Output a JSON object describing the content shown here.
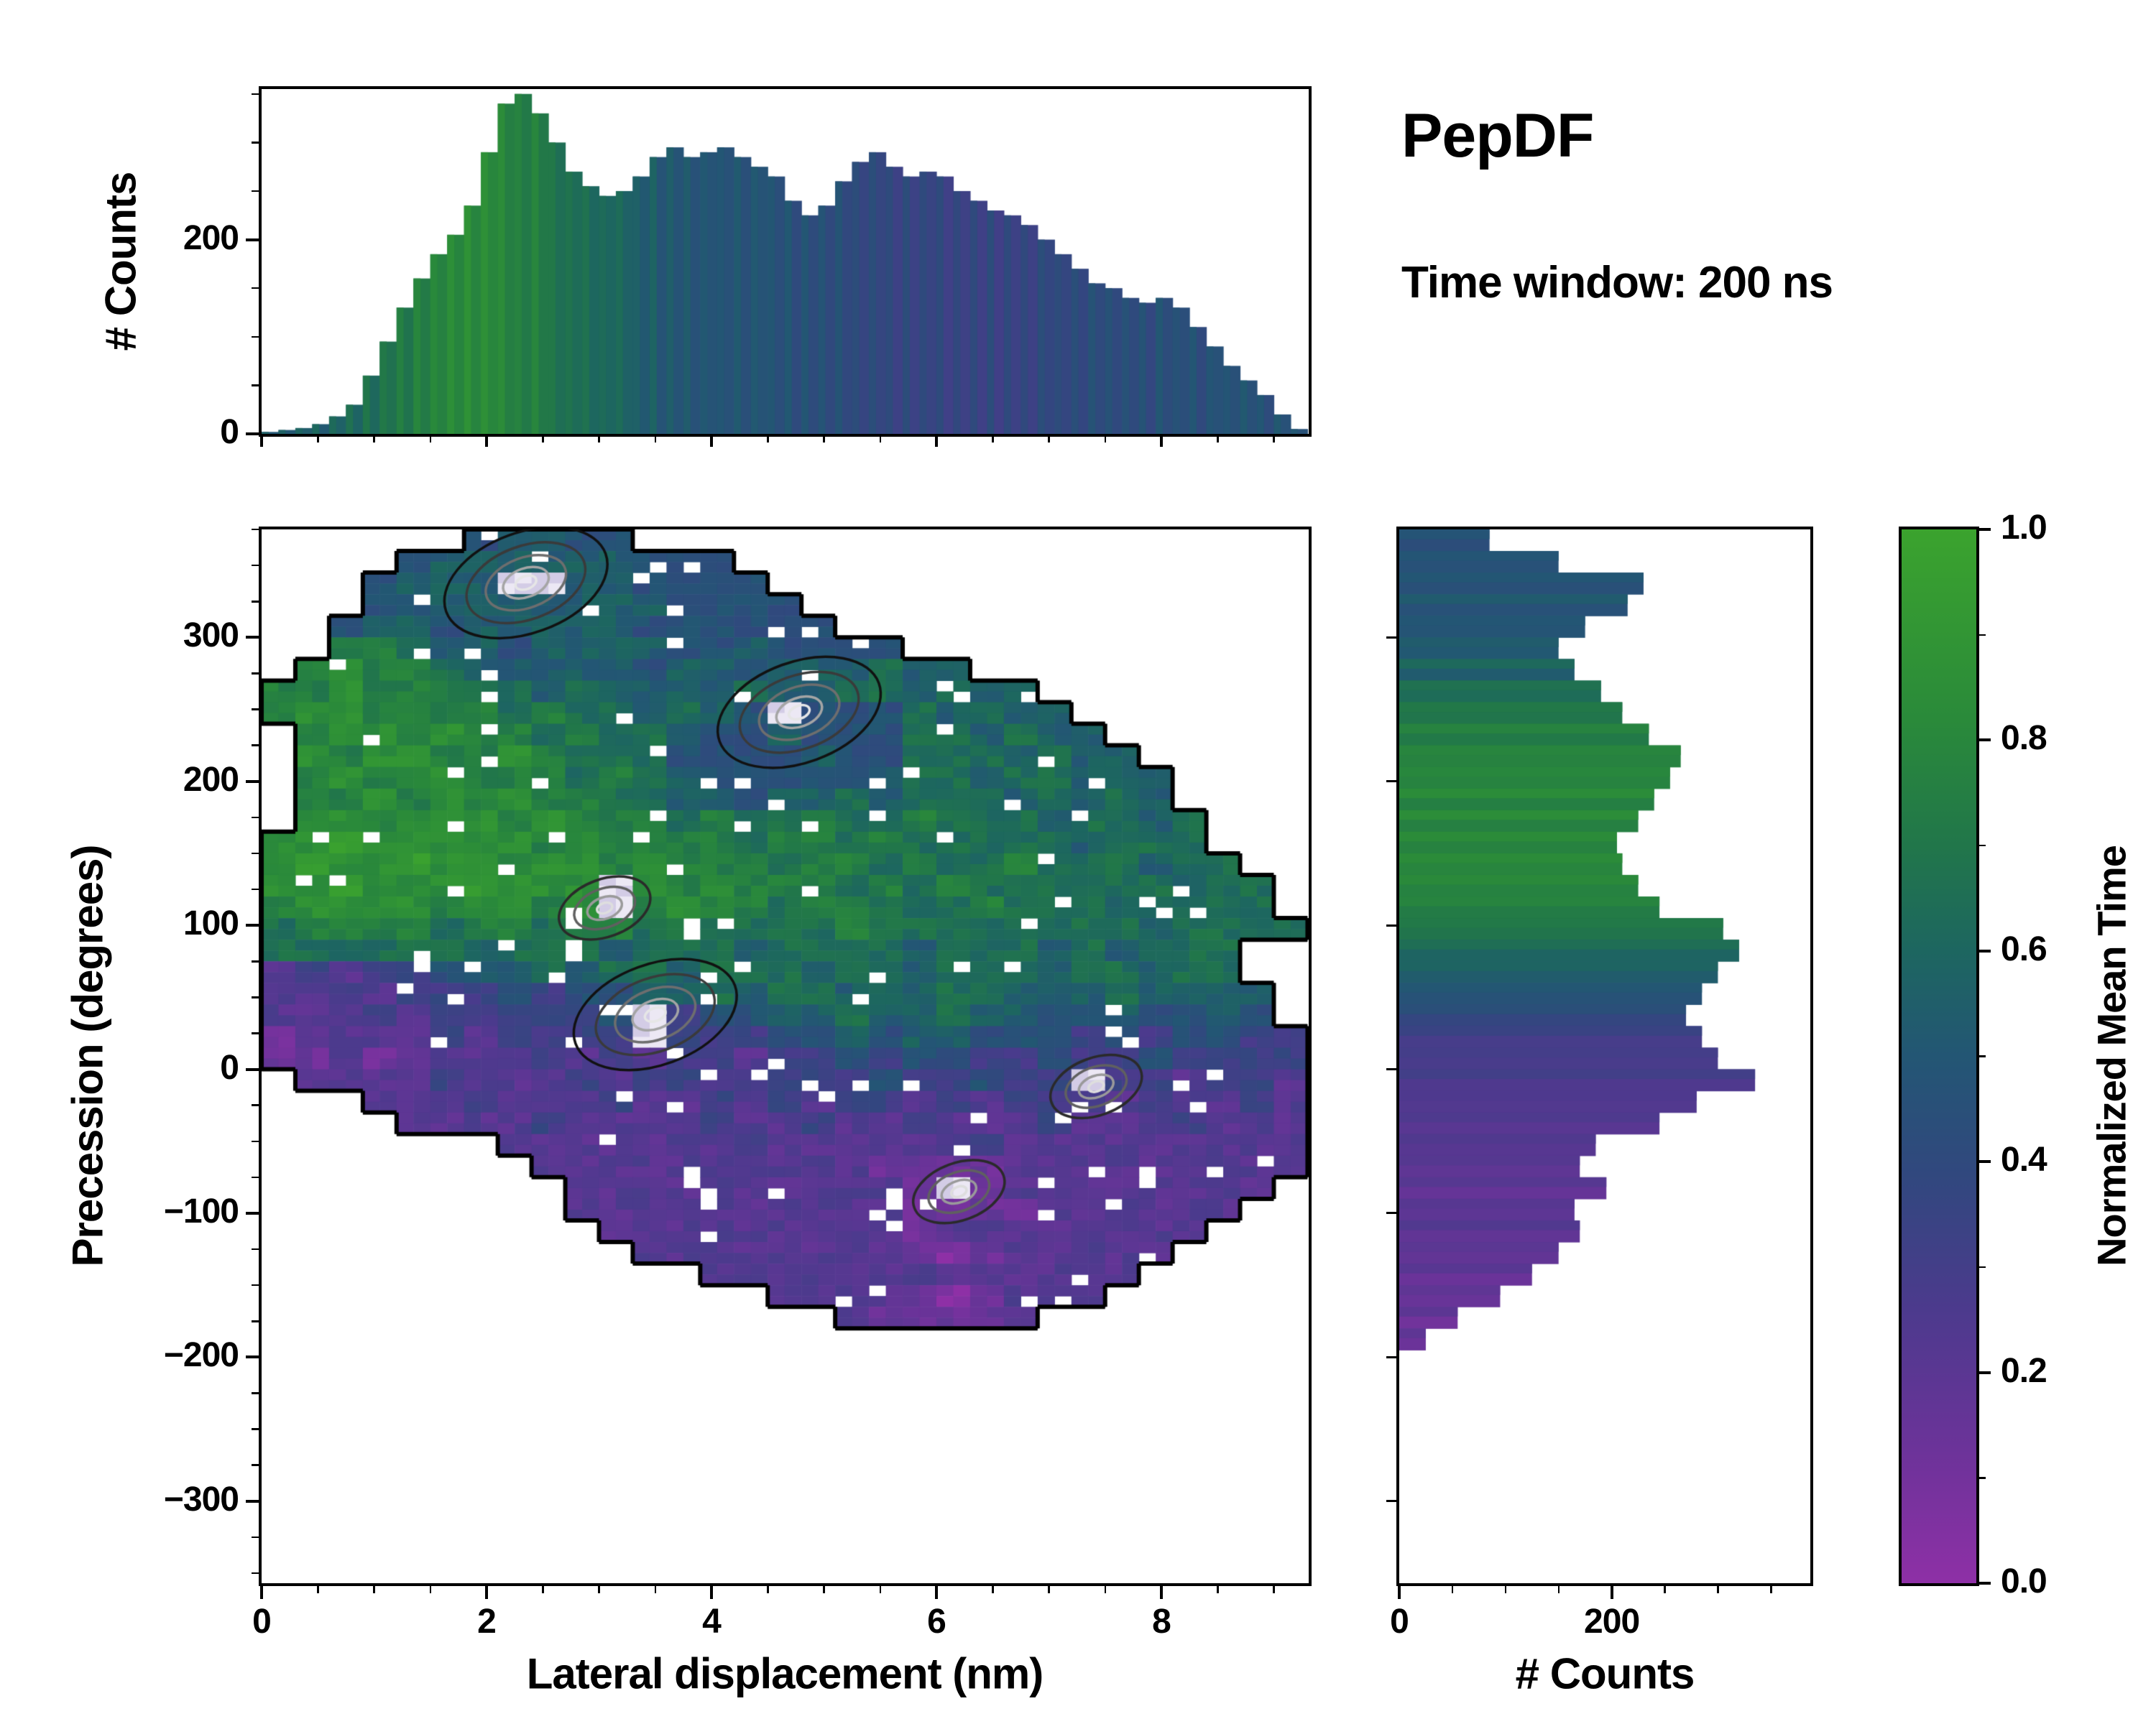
{
  "title": "PepDF",
  "subtitle": "Time window: 200 ns",
  "labels": {
    "top_y": "# Counts",
    "main_x": "Lateral displacement (nm)",
    "main_y": "Precession (degrees)",
    "right_x": "# Counts",
    "colorbar": "Normalized Mean Time"
  },
  "axes": {
    "main": {
      "xlim": [
        0,
        9.31
      ],
      "ylim": [
        -357,
        375
      ],
      "xticks": [
        0,
        2,
        4,
        6,
        8
      ],
      "xtick_labels": [
        "0",
        "2",
        "4",
        "6",
        "8"
      ],
      "yticks": [
        300,
        200,
        100,
        0,
        -100,
        -200,
        -300
      ],
      "ytick_labels": [
        "300",
        "200",
        "100",
        "0",
        "−100",
        "−200",
        "−300"
      ],
      "x_minor_step": 0.5,
      "y_minor_step": 25
    },
    "top": {
      "ylim": [
        0,
        355
      ],
      "yticks": [
        0,
        200
      ],
      "ytick_labels": [
        "0",
        "200"
      ],
      "y_minor_step": 50
    },
    "right": {
      "xlim": [
        0,
        387
      ],
      "xticks": [
        0,
        200
      ],
      "xtick_labels": [
        "0",
        "200"
      ],
      "x_minor_step": 50
    },
    "colorbar": {
      "lim": [
        0,
        1
      ],
      "ticks": [
        0,
        0.2,
        0.4,
        0.6,
        0.8,
        1.0
      ],
      "tick_labels": [
        "0.0",
        "0.2",
        "0.4",
        "0.6",
        "0.8",
        "1.0"
      ],
      "minor_step": 0.1
    }
  },
  "colormap": {
    "stops": [
      {
        "v": 0.0,
        "c": "#8e30a6"
      },
      {
        "v": 0.13,
        "c": "#6b3399"
      },
      {
        "v": 0.26,
        "c": "#4c3a8d"
      },
      {
        "v": 0.38,
        "c": "#32477f"
      },
      {
        "v": 0.5,
        "c": "#235674"
      },
      {
        "v": 0.6,
        "c": "#1d6660"
      },
      {
        "v": 0.7,
        "c": "#21764a"
      },
      {
        "v": 0.82,
        "c": "#2a8a3a"
      },
      {
        "v": 1.0,
        "c": "#3ba32e"
      }
    ]
  },
  "chart_data": [
    {
      "type": "bar",
      "name": "lateral-histogram",
      "orientation": "vertical",
      "xlabel": "Lateral displacement (nm)",
      "ylabel": "# Counts",
      "x_start": 0,
      "bin_width": 0.15,
      "counts": [
        2,
        4,
        6,
        10,
        18,
        30,
        60,
        95,
        130,
        160,
        185,
        205,
        235,
        290,
        340,
        350,
        330,
        300,
        270,
        255,
        245,
        250,
        265,
        285,
        295,
        285,
        290,
        295,
        285,
        275,
        265,
        240,
        225,
        235,
        260,
        280,
        290,
        275,
        265,
        270,
        265,
        250,
        240,
        230,
        225,
        215,
        200,
        185,
        170,
        155,
        150,
        140,
        135,
        140,
        130,
        110,
        90,
        70,
        55,
        40,
        20,
        5
      ],
      "color_values": [
        0.5,
        0.5,
        0.52,
        0.54,
        0.56,
        0.58,
        0.62,
        0.66,
        0.7,
        0.73,
        0.76,
        0.78,
        0.79,
        0.78,
        0.76,
        0.73,
        0.7,
        0.66,
        0.62,
        0.6,
        0.58,
        0.55,
        0.52,
        0.5,
        0.48,
        0.47,
        0.46,
        0.45,
        0.45,
        0.45,
        0.44,
        0.43,
        0.42,
        0.41,
        0.4,
        0.38,
        0.36,
        0.35,
        0.34,
        0.33,
        0.32,
        0.32,
        0.33,
        0.34,
        0.34,
        0.35,
        0.36,
        0.37,
        0.37,
        0.38,
        0.39,
        0.4,
        0.4,
        0.41,
        0.42,
        0.42,
        0.43,
        0.43,
        0.44,
        0.44,
        0.45,
        0.45
      ]
    },
    {
      "type": "heatmap",
      "name": "displacement-precession-density",
      "xlabel": "Lateral displacement (nm)",
      "ylabel": "Precession (degrees)",
      "color_label": "Normalized Mean Time",
      "x_start": 0,
      "x_bin": 0.3,
      "y_start": 375,
      "y_bin": 15,
      "value_map": {
        "0": 0.04,
        "1": 0.13,
        "2": 0.22,
        "3": 0.32,
        "4": 0.45,
        "5": 0.55,
        "6": 0.65,
        "7": 0.75,
        "8": 0.85,
        "9": 0.93
      },
      "peak_char": "w",
      "rows": [
        "......45544....................",
        "....4555555444.................",
        "...4555ww554444................",
        "...4455555554444...............",
        "..455455555444444..............",
        "..77655455554454444............",
        ".78776555554554555655..........",
        "77877766565555655665655........",
        "788777767665654w44465655.......",
        ".788787767665445444665655......",
        ".8788778766644445446665655.....",
        ".78788777676544444566566555....",
        ".77878787766554556566656565....",
        ".887888787776766766766656656...",
        "8898888878777767767666665666...",
        "89889887887877767767667666566..",
        "8898889888w8787776767666666566.",
        "7888878878w7877677666766656666.",
        "6777767767767666676666666656666",
        "66666656665666566665666565666..",
        "23233455656656665665666566566..",
        "223233343445565665656655565555.",
        "22232333334w344556556554454454.",
        "12222323333w3334454554443434433",
        "1121222232323323343443343343333",
        ".22223222323323333433433w332332",
        "...2223222322323233232333232232",
        "....222232222322322322232223222",
        ".......222222232222223222222222",
        "........22222222221111222222222",
        ".........22222222221w122222222.",
        ".........22222222221111222222..",
        "..........222222222122222222...",
        "...........2222222210122222....",
        ".............2222222222222.....",
        "...............2222101222......",
        ".................211112........"
      ],
      "peaks": [
        {
          "x": 2.35,
          "y": 338,
          "major": true
        },
        {
          "x": 4.78,
          "y": 248,
          "major": true
        },
        {
          "x": 3.05,
          "y": 112,
          "major": false
        },
        {
          "x": 3.5,
          "y": 38,
          "major": true
        },
        {
          "x": 7.42,
          "y": -12,
          "major": false
        },
        {
          "x": 6.2,
          "y": -85,
          "major": false
        }
      ]
    },
    {
      "type": "bar",
      "name": "precession-histogram",
      "orientation": "horizontal",
      "xlabel": "# Counts",
      "ylabel": "Precession (degrees)",
      "y_start": 375,
      "bin_height": 15,
      "counts": [
        85,
        150,
        230,
        215,
        175,
        150,
        165,
        190,
        210,
        235,
        265,
        255,
        240,
        225,
        205,
        210,
        225,
        245,
        305,
        320,
        300,
        285,
        270,
        285,
        300,
        335,
        280,
        245,
        185,
        170,
        195,
        165,
        170,
        150,
        125,
        95,
        55,
        25
      ],
      "color_values": [
        0.45,
        0.45,
        0.46,
        0.46,
        0.47,
        0.5,
        0.55,
        0.62,
        0.68,
        0.72,
        0.75,
        0.76,
        0.77,
        0.78,
        0.78,
        0.77,
        0.75,
        0.72,
        0.68,
        0.6,
        0.52,
        0.45,
        0.38,
        0.3,
        0.26,
        0.24,
        0.22,
        0.2,
        0.2,
        0.19,
        0.18,
        0.18,
        0.17,
        0.16,
        0.15,
        0.14,
        0.13,
        0.12
      ]
    }
  ]
}
